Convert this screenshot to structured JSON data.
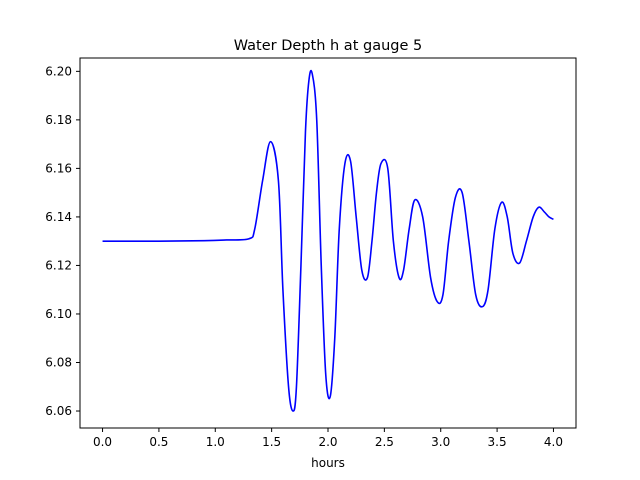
{
  "chart_data": {
    "type": "line",
    "title": "Water Depth h at gauge 5",
    "xlabel": "hours",
    "ylabel": "",
    "xlim": [
      -0.2,
      4.2
    ],
    "ylim": [
      6.053,
      6.2055
    ],
    "xticks": [
      0.0,
      0.5,
      1.0,
      1.5,
      2.0,
      2.5,
      3.0,
      3.5,
      4.0
    ],
    "xtick_labels": [
      "0.0",
      "0.5",
      "1.0",
      "1.5",
      "2.0",
      "2.5",
      "3.0",
      "3.5",
      "4.0"
    ],
    "yticks": [
      6.06,
      6.08,
      6.1,
      6.12,
      6.14,
      6.16,
      6.18,
      6.2
    ],
    "ytick_labels": [
      "6.06",
      "6.08",
      "6.10",
      "6.12",
      "6.14",
      "6.16",
      "6.18",
      "6.20"
    ],
    "grid": false,
    "legend": "none",
    "series": [
      {
        "color": "#0000ff",
        "x": [
          0.0,
          0.5,
          0.9,
          1.1,
          1.3,
          1.35,
          1.42,
          1.49,
          1.56,
          1.6,
          1.65,
          1.69,
          1.72,
          1.76,
          1.8,
          1.83,
          1.86,
          1.9,
          1.94,
          1.98,
          2.02,
          2.06,
          2.1,
          2.15,
          2.2,
          2.25,
          2.3,
          2.35,
          2.39,
          2.43,
          2.47,
          2.53,
          2.58,
          2.63,
          2.67,
          2.72,
          2.77,
          2.84,
          2.91,
          2.97,
          3.02,
          3.07,
          3.13,
          3.19,
          3.25,
          3.31,
          3.37,
          3.42,
          3.48,
          3.54,
          3.59,
          3.64,
          3.7,
          3.76,
          3.82,
          3.87,
          3.92,
          3.96,
          4.0
        ],
        "y": [
          6.13,
          6.13,
          6.1302,
          6.1305,
          6.131,
          6.135,
          6.155,
          6.171,
          6.155,
          6.11,
          6.07,
          6.06,
          6.07,
          6.12,
          6.175,
          6.196,
          6.199,
          6.18,
          6.12,
          6.075,
          6.066,
          6.09,
          6.135,
          6.162,
          6.163,
          6.14,
          6.118,
          6.115,
          6.13,
          6.15,
          6.162,
          6.16,
          6.13,
          6.115,
          6.118,
          6.135,
          6.147,
          6.14,
          6.115,
          6.105,
          6.108,
          6.13,
          6.148,
          6.15,
          6.13,
          6.108,
          6.103,
          6.11,
          6.135,
          6.146,
          6.14,
          6.125,
          6.121,
          6.13,
          6.14,
          6.144,
          6.142,
          6.14,
          6.139
        ]
      }
    ]
  }
}
